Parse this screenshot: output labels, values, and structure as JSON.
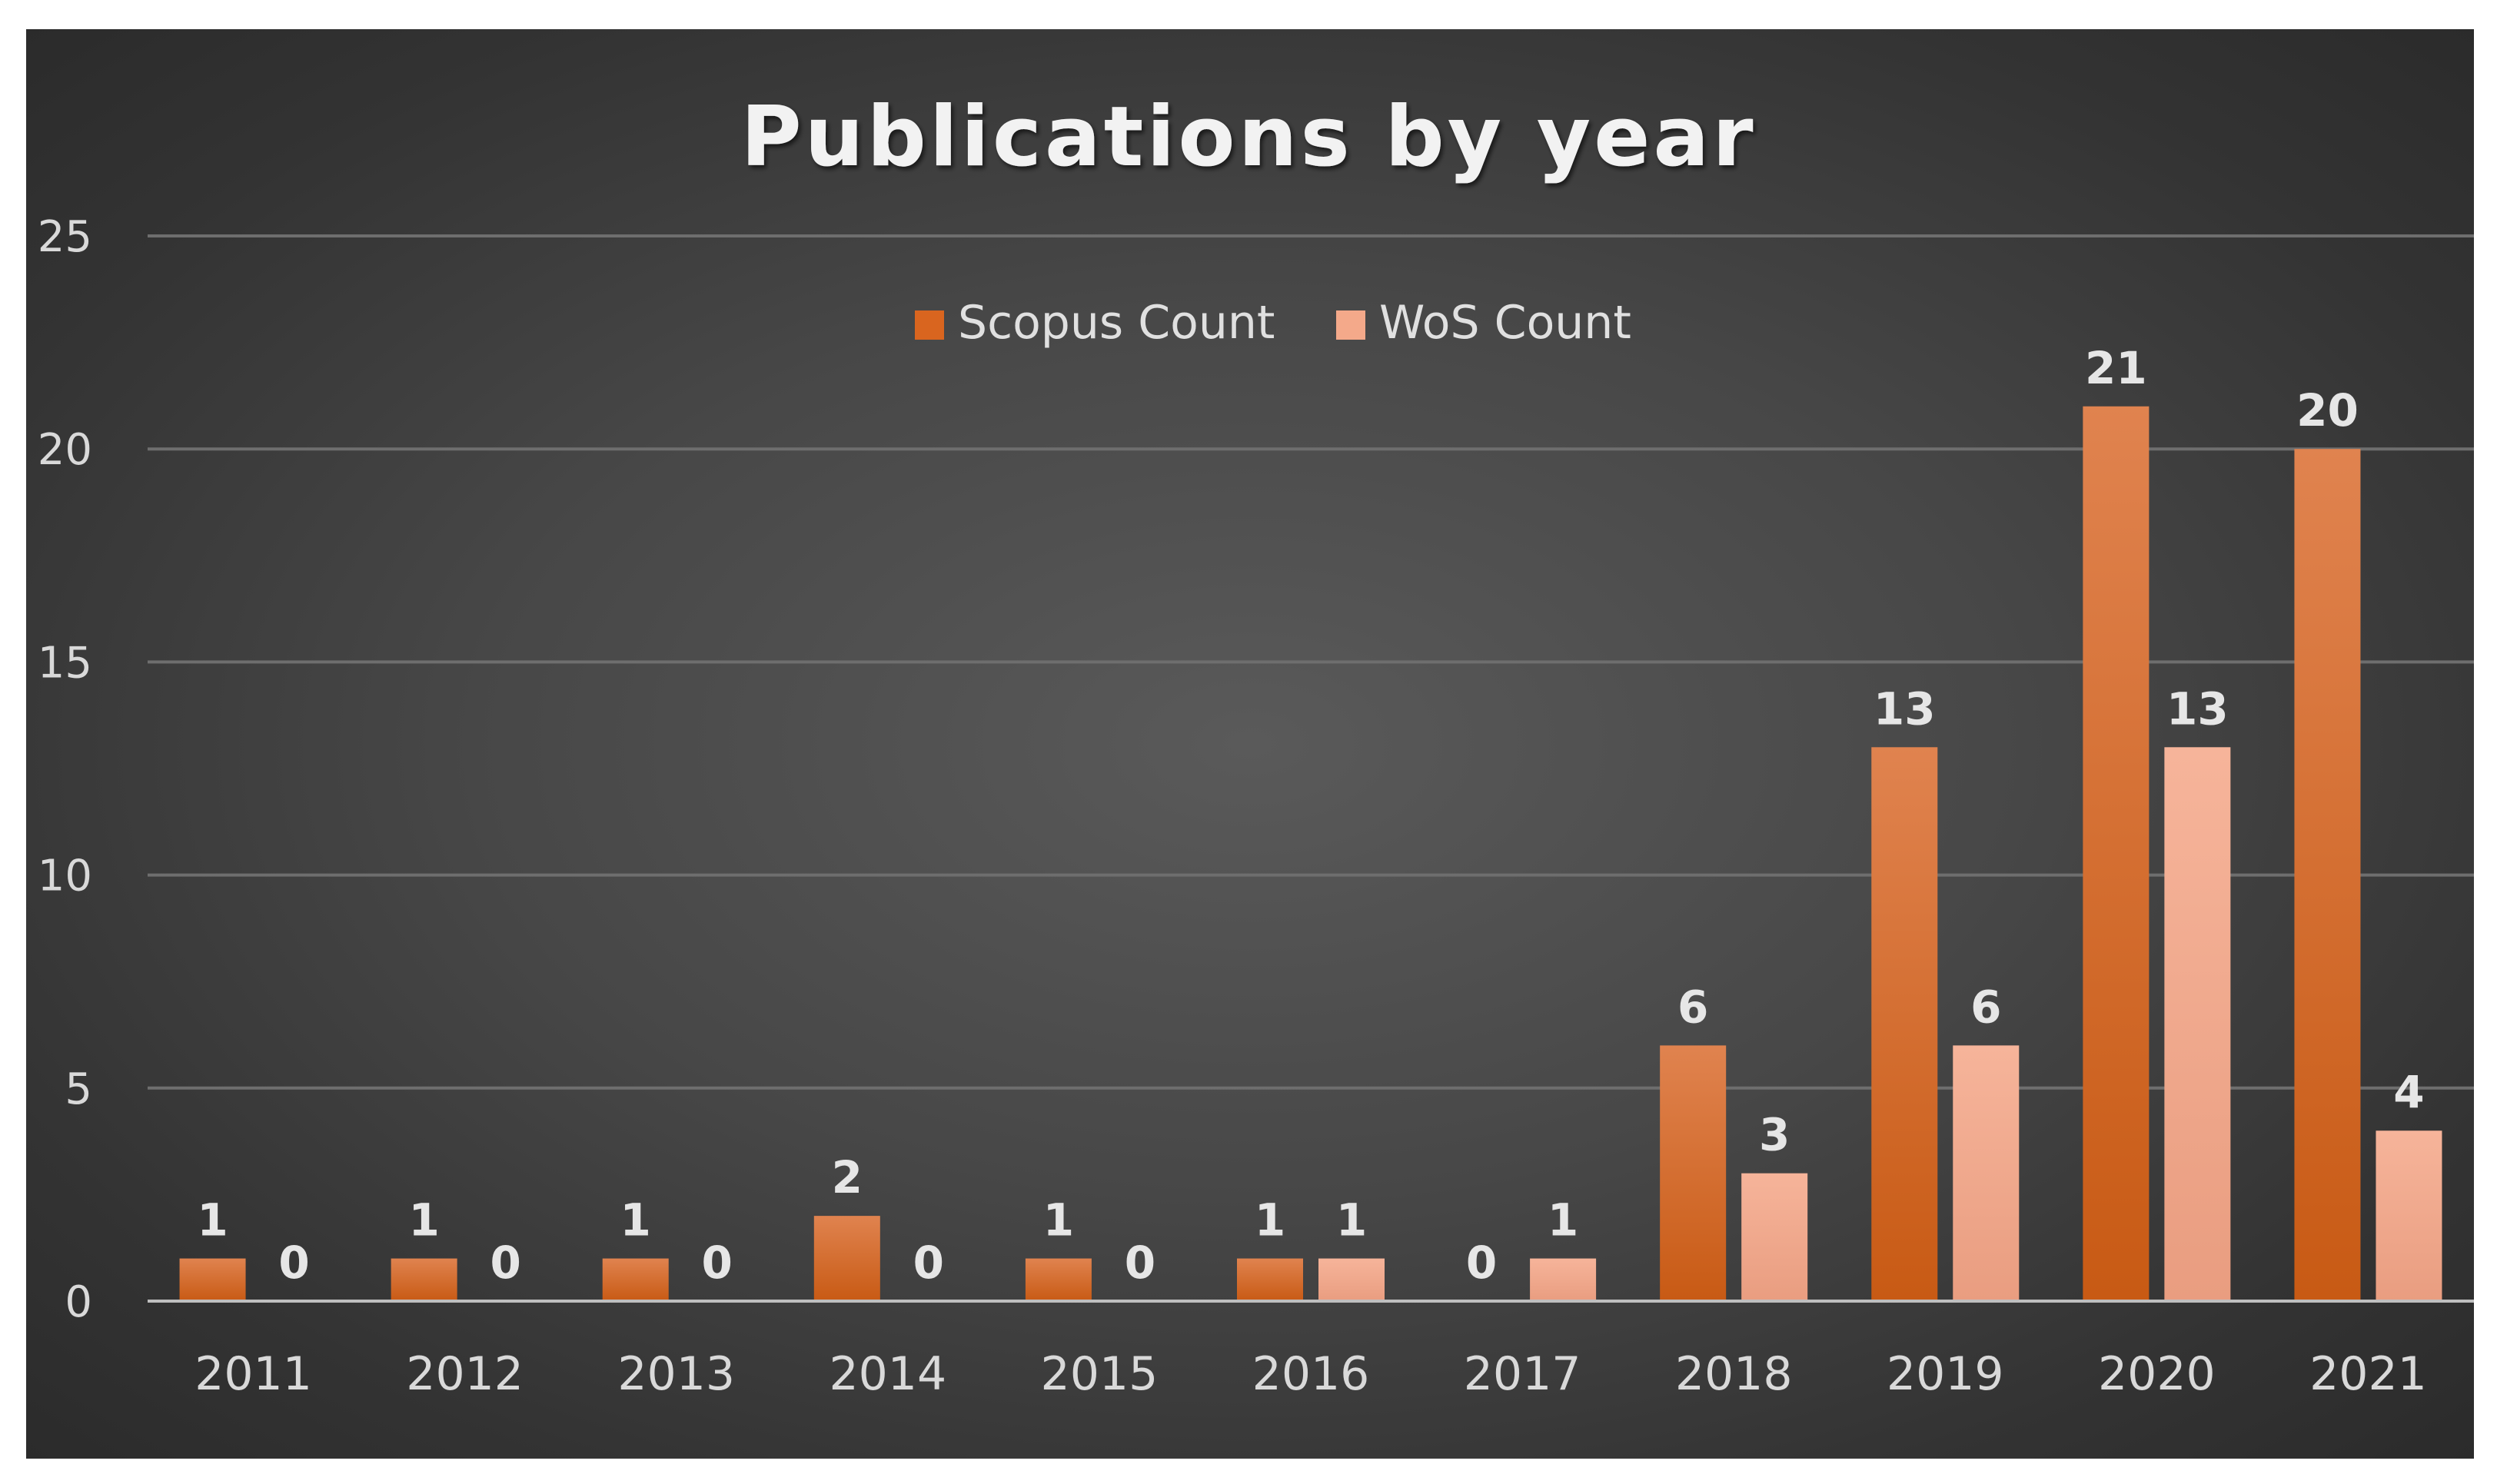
{
  "chart_data": {
    "type": "bar",
    "title": "Publications by year",
    "categories": [
      "2011",
      "2012",
      "2013",
      "2014",
      "2015",
      "2016",
      "2017",
      "2018",
      "2019",
      "2020",
      "2021"
    ],
    "series": [
      {
        "name": "Scopus Count",
        "color": "#d9651f",
        "values": [
          1,
          1,
          1,
          2,
          1,
          1,
          0,
          6,
          13,
          21,
          20
        ]
      },
      {
        "name": "WoS Count",
        "color": "#f4a98a",
        "values": [
          0,
          0,
          0,
          0,
          0,
          1,
          1,
          3,
          6,
          13,
          4
        ]
      }
    ],
    "ylim": [
      0,
      25
    ],
    "yticks": [
      "0",
      "5",
      "10",
      "15",
      "20",
      "25"
    ],
    "ytick_values": [
      0,
      5,
      10,
      15,
      20,
      25
    ],
    "grid": true,
    "legend_position": "top-center",
    "data_labels": true,
    "background": "#3f3f3f"
  }
}
